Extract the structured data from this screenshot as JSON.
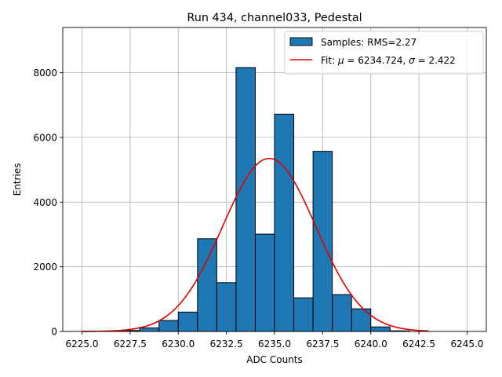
{
  "chart_data": {
    "type": "bar",
    "title": "Run 434, channel033, Pedestal",
    "xlabel": "ADC Counts",
    "ylabel": "Entries",
    "xlim": [
      6224.0,
      6246.0
    ],
    "ylim": [
      0,
      9400
    ],
    "xticks": [
      6225.0,
      6227.5,
      6230.0,
      6232.5,
      6235.0,
      6237.5,
      6240.0,
      6242.5,
      6245.0
    ],
    "xtick_labels": [
      "6225.0",
      "6227.5",
      "6230.0",
      "6232.5",
      "6235.0",
      "6237.5",
      "6240.0",
      "6242.5",
      "6245.0"
    ],
    "yticks": [
      0,
      2000,
      4000,
      6000,
      8000
    ],
    "ytick_labels": [
      "0",
      "2000",
      "4000",
      "6000",
      "8000"
    ],
    "grid": true,
    "legend_position": "top-right",
    "bin_width": 1,
    "histogram": {
      "name": "Samples: RMS=2.27",
      "color": "#1f77b4",
      "edge_color": "#000000",
      "bin_left_edges": [
        6227,
        6228,
        6229,
        6230,
        6231,
        6232,
        6233,
        6234,
        6235,
        6236,
        6237,
        6238,
        6239,
        6240,
        6241
      ],
      "values": [
        30,
        110,
        340,
        600,
        2870,
        1510,
        8160,
        3010,
        6720,
        1040,
        5570,
        1140,
        700,
        140,
        20
      ]
    },
    "fit": {
      "name_prefix": "Fit: ",
      "mu_symbol": "μ",
      "mu_text": " = 6234.724, ",
      "sigma_symbol": "σ",
      "sigma_text": " = 2.422",
      "color": "#e00000",
      "mu": 6234.724,
      "sigma": 2.422,
      "amplitude": 5350,
      "x_range": [
        6225.0,
        6243.0
      ]
    }
  }
}
